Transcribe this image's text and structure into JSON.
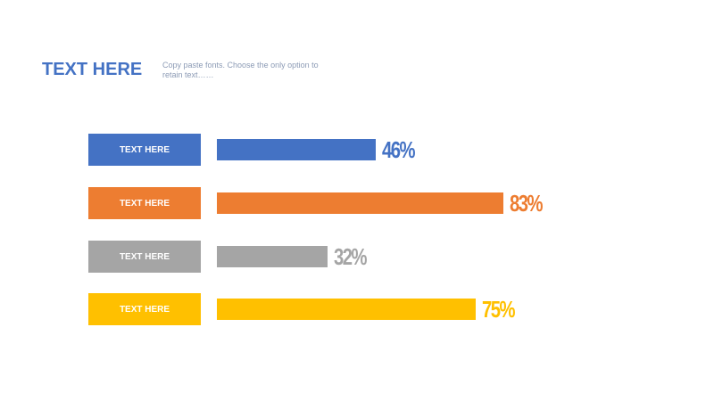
{
  "header": {
    "title": "TEXT HERE",
    "subtitle": "Copy paste fonts. Choose the only option to retain text……"
  },
  "chart_data": {
    "type": "bar",
    "orientation": "horizontal",
    "categories": [
      "TEXT HERE",
      "TEXT HERE",
      "TEXT HERE",
      "TEXT HERE"
    ],
    "values": [
      46,
      83,
      32,
      75
    ],
    "labels": [
      "46%",
      "83%",
      "32%",
      "75%"
    ],
    "colors": [
      "#4472c4",
      "#ed7d31",
      "#a5a5a5",
      "#ffc000"
    ],
    "xlim": [
      0,
      100
    ],
    "title": "TEXT HERE"
  }
}
